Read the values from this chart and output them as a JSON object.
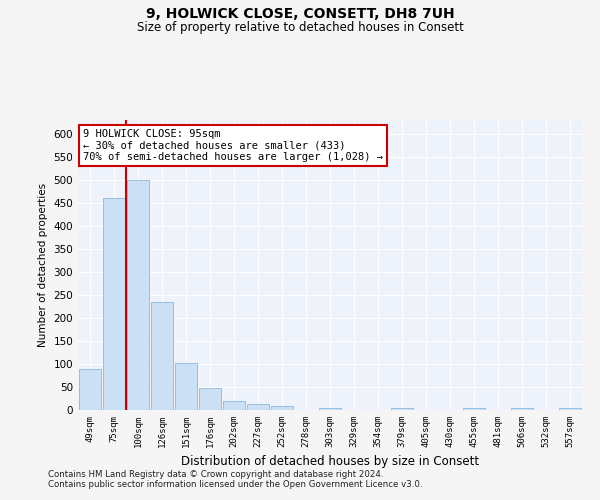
{
  "title": "9, HOLWICK CLOSE, CONSETT, DH8 7UH",
  "subtitle": "Size of property relative to detached houses in Consett",
  "xlabel": "Distribution of detached houses by size in Consett",
  "ylabel": "Number of detached properties",
  "bar_color": "#cce0f5",
  "bar_edge_color": "#7ab0d8",
  "background_color": "#eef2fa",
  "grid_color": "#ffffff",
  "annotation_box_color": "#cc0000",
  "property_line_color": "#cc0000",
  "annotation_text_line1": "9 HOLWICK CLOSE: 95sqm",
  "annotation_text_line2": "← 30% of detached houses are smaller (433)",
  "annotation_text_line3": "70% of semi-detached houses are larger (1,028) →",
  "categories": [
    "49sqm",
    "75sqm",
    "100sqm",
    "126sqm",
    "151sqm",
    "176sqm",
    "202sqm",
    "227sqm",
    "252sqm",
    "278sqm",
    "303sqm",
    "329sqm",
    "354sqm",
    "379sqm",
    "405sqm",
    "430sqm",
    "455sqm",
    "481sqm",
    "506sqm",
    "532sqm",
    "557sqm"
  ],
  "values": [
    90,
    460,
    500,
    235,
    103,
    47,
    20,
    13,
    8,
    0,
    5,
    0,
    0,
    5,
    0,
    0,
    5,
    0,
    5,
    0,
    5
  ],
  "ylim": [
    0,
    630
  ],
  "yticks": [
    0,
    50,
    100,
    150,
    200,
    250,
    300,
    350,
    400,
    450,
    500,
    550,
    600
  ],
  "footnote1": "Contains HM Land Registry data © Crown copyright and database right 2024.",
  "footnote2": "Contains public sector information licensed under the Open Government Licence v3.0."
}
